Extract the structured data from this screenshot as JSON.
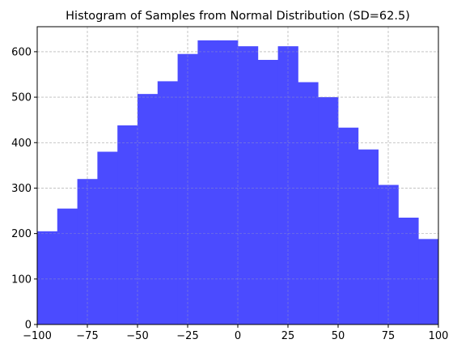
{
  "chart_data": {
    "type": "bar",
    "title": "Histogram of Samples from Normal Distribution (SD=62.5)",
    "xlabel": "",
    "ylabel": "",
    "xlim": [
      -100,
      100
    ],
    "ylim": [
      0,
      655
    ],
    "grid": true,
    "bar_color": "#4b4bff",
    "grid_color": "#b0b0b0",
    "x_ticks": [
      -100,
      -75,
      -50,
      -25,
      0,
      25,
      50,
      75,
      100
    ],
    "y_ticks": [
      0,
      100,
      200,
      300,
      400,
      500,
      600
    ],
    "bins": [
      {
        "x0": -100,
        "x1": -90,
        "value": 205
      },
      {
        "x0": -90,
        "x1": -80,
        "value": 255
      },
      {
        "x0": -80,
        "x1": -70,
        "value": 320
      },
      {
        "x0": -70,
        "x1": -60,
        "value": 380
      },
      {
        "x0": -60,
        "x1": -50,
        "value": 438
      },
      {
        "x0": -50,
        "x1": -40,
        "value": 507
      },
      {
        "x0": -40,
        "x1": -30,
        "value": 535
      },
      {
        "x0": -30,
        "x1": -20,
        "value": 595
      },
      {
        "x0": -20,
        "x1": -10,
        "value": 625
      },
      {
        "x0": -10,
        "x1": 0,
        "value": 625
      },
      {
        "x0": 0,
        "x1": 10,
        "value": 612
      },
      {
        "x0": 10,
        "x1": 20,
        "value": 582
      },
      {
        "x0": 20,
        "x1": 30,
        "value": 612
      },
      {
        "x0": 30,
        "x1": 40,
        "value": 533
      },
      {
        "x0": 40,
        "x1": 50,
        "value": 500
      },
      {
        "x0": 50,
        "x1": 60,
        "value": 433
      },
      {
        "x0": 60,
        "x1": 70,
        "value": 385
      },
      {
        "x0": 70,
        "x1": 80,
        "value": 307
      },
      {
        "x0": 80,
        "x1": 90,
        "value": 235
      },
      {
        "x0": 90,
        "x1": 100,
        "value": 188
      }
    ]
  }
}
